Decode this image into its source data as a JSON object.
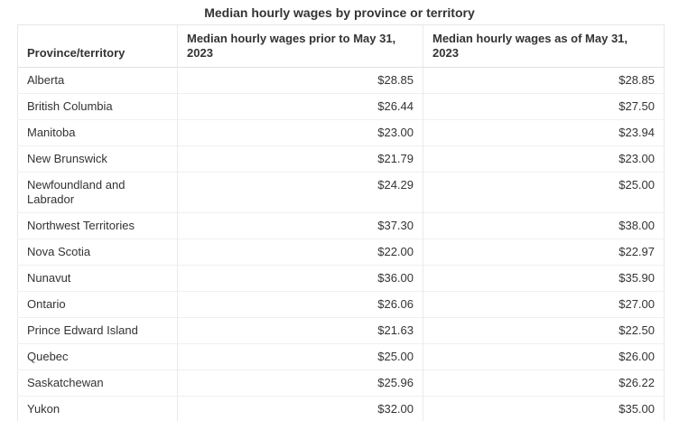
{
  "title": "Median hourly wages by province or territory",
  "table": {
    "headers": {
      "province": "Province/territory",
      "prior": "Median hourly wages prior to May 31, 2023",
      "asof": "Median hourly wages as of May 31, 2023"
    },
    "rows": [
      {
        "province": "Alberta",
        "prior": "$28.85",
        "asof": "$28.85"
      },
      {
        "province": "British Columbia",
        "prior": "$26.44",
        "asof": "$27.50"
      },
      {
        "province": "Manitoba",
        "prior": "$23.00",
        "asof": "$23.94"
      },
      {
        "province": "New Brunswick",
        "prior": "$21.79",
        "asof": "$23.00"
      },
      {
        "province": "Newfoundland and Labrador",
        "prior": "$24.29",
        "asof": "$25.00"
      },
      {
        "province": "Northwest Territories",
        "prior": "$37.30",
        "asof": "$38.00"
      },
      {
        "province": "Nova Scotia",
        "prior": "$22.00",
        "asof": "$22.97"
      },
      {
        "province": "Nunavut",
        "prior": "$36.00",
        "asof": "$35.90"
      },
      {
        "province": "Ontario",
        "prior": "$26.06",
        "asof": "$27.00"
      },
      {
        "province": "Prince Edward Island",
        "prior": "$21.63",
        "asof": "$22.50"
      },
      {
        "province": "Quebec",
        "prior": "$25.00",
        "asof": "$26.00"
      },
      {
        "province": "Saskatchewan",
        "prior": "$25.96",
        "asof": "$26.22"
      },
      {
        "province": "Yukon",
        "prior": "$32.00",
        "asof": "$35.00"
      }
    ]
  },
  "chart_data": {
    "type": "table",
    "title": "Median hourly wages by province or territory",
    "columns": [
      "Province/territory",
      "Median hourly wages prior to May 31, 2023",
      "Median hourly wages as of May 31, 2023"
    ],
    "rows": [
      [
        "Alberta",
        28.85,
        28.85
      ],
      [
        "British Columbia",
        26.44,
        27.5
      ],
      [
        "Manitoba",
        23.0,
        23.94
      ],
      [
        "New Brunswick",
        21.79,
        23.0
      ],
      [
        "Newfoundland and Labrador",
        24.29,
        25.0
      ],
      [
        "Northwest Territories",
        37.3,
        38.0
      ],
      [
        "Nova Scotia",
        22.0,
        22.97
      ],
      [
        "Nunavut",
        36.0,
        35.9
      ],
      [
        "Ontario",
        26.06,
        27.0
      ],
      [
        "Prince Edward Island",
        21.63,
        22.5
      ],
      [
        "Quebec",
        25.0,
        26.0
      ],
      [
        "Saskatchewan",
        25.96,
        26.22
      ],
      [
        "Yukon",
        32.0,
        35.0
      ]
    ],
    "units": "CAD $/hour",
    "layout": {
      "grid": true,
      "value_alignment": "right"
    }
  },
  "colors": {
    "text": "#333333",
    "outer_border": "#e7e7e7",
    "bottom_border": "#dcdcdc",
    "row_divider": "#f0f0f0",
    "column_divider": "#eaeaea",
    "background": "#ffffff"
  }
}
